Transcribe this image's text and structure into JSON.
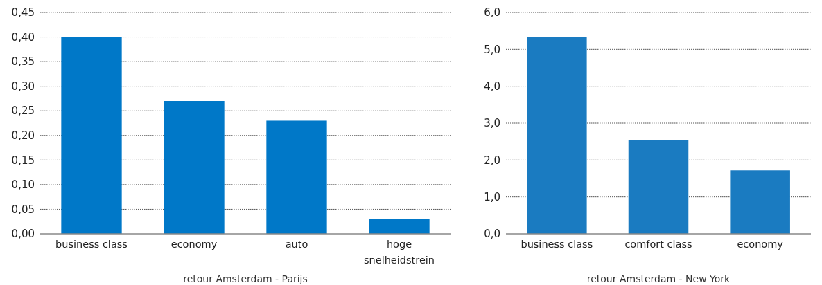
{
  "chart_data": [
    {
      "type": "bar",
      "xlabel": "retour Amsterdam - Parijs",
      "categories": [
        "business class",
        "economy",
        "auto",
        "hoge snelheidstrein"
      ],
      "values": [
        0.4,
        0.27,
        0.23,
        0.03
      ],
      "color": "#0078c8",
      "ylim": [
        0,
        0.45
      ],
      "yticks": [
        {
          "value": 0,
          "label": "0,00"
        },
        {
          "value": 0.05,
          "label": "0,05"
        },
        {
          "value": 0.1,
          "label": "0,10"
        },
        {
          "value": 0.15,
          "label": "0,15"
        },
        {
          "value": 0.2,
          "label": "0,20"
        },
        {
          "value": 0.25,
          "label": "0,25"
        },
        {
          "value": 0.3,
          "label": "0,30"
        },
        {
          "value": 0.35,
          "label": "0,35"
        },
        {
          "value": 0.4,
          "label": "0,40"
        },
        {
          "value": 0.45,
          "label": "0,45"
        }
      ],
      "grid": "y"
    },
    {
      "type": "bar",
      "xlabel": "retour Amsterdam - New York",
      "categories": [
        "business class",
        "comfort class",
        "economy"
      ],
      "values": [
        5.33,
        2.55,
        1.72
      ],
      "color": "#1a7bc1",
      "ylim": [
        0,
        6
      ],
      "yticks": [
        {
          "value": 0,
          "label": "0,0"
        },
        {
          "value": 1,
          "label": "1,0"
        },
        {
          "value": 2,
          "label": "2,0"
        },
        {
          "value": 3,
          "label": "3,0"
        },
        {
          "value": 4,
          "label": "4,0"
        },
        {
          "value": 5,
          "label": "5,0"
        },
        {
          "value": 6,
          "label": "6,0"
        }
      ],
      "grid": "y"
    }
  ]
}
